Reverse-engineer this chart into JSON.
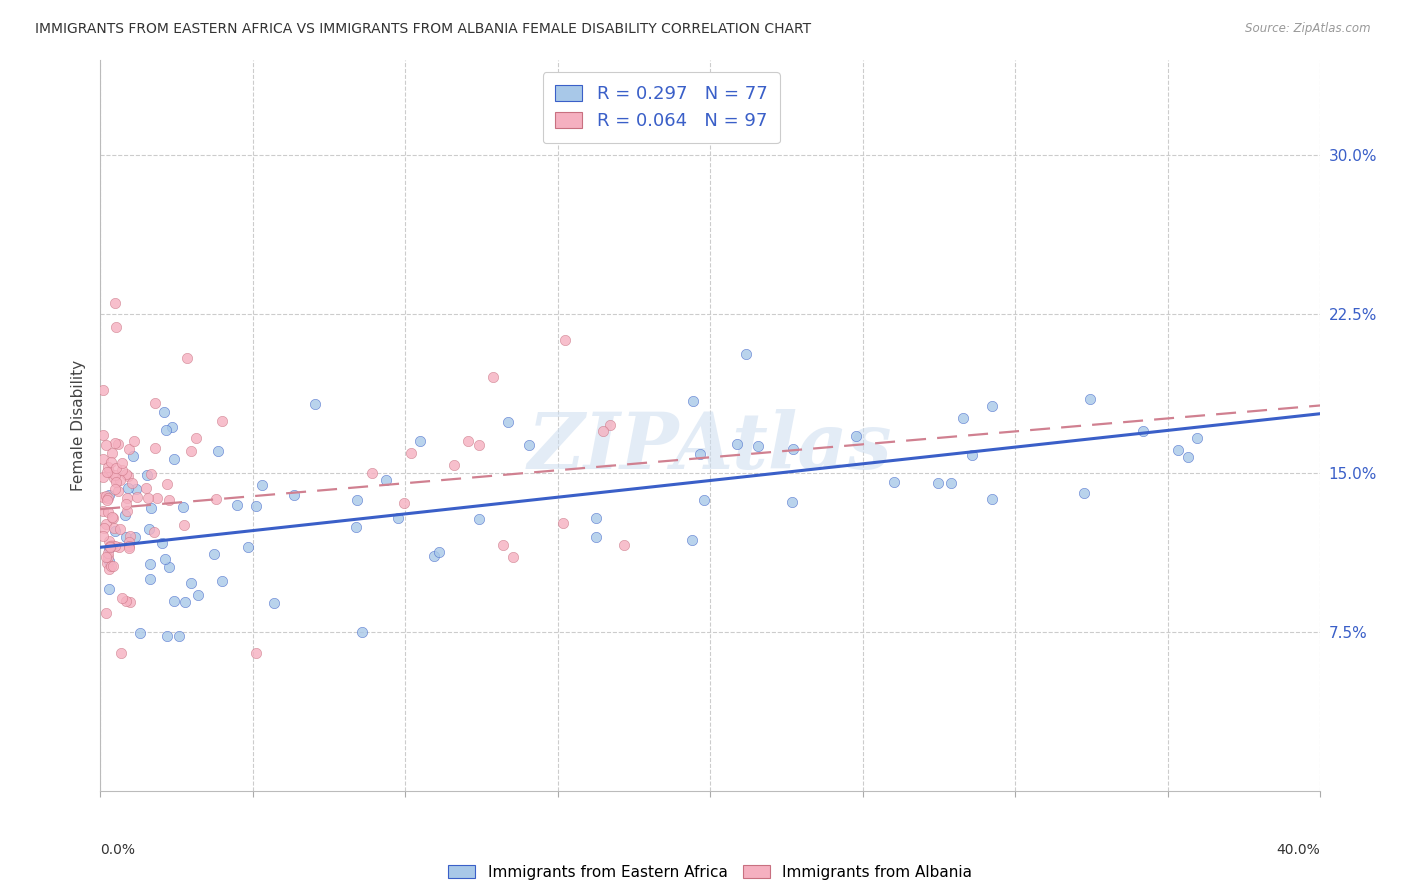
{
  "title": "IMMIGRANTS FROM EASTERN AFRICA VS IMMIGRANTS FROM ALBANIA FEMALE DISABILITY CORRELATION CHART",
  "source": "Source: ZipAtlas.com",
  "ylabel": "Female Disability",
  "ytick_values": [
    0.075,
    0.15,
    0.225,
    0.3
  ],
  "legend_label_blue": "R = 0.297   N = 77",
  "legend_label_pink": "R = 0.064   N = 97",
  "legend_bottom_blue": "Immigrants from Eastern Africa",
  "legend_bottom_pink": "Immigrants from Albania",
  "color_blue": "#a8c8e8",
  "color_pink": "#f5b0c0",
  "color_trendline_blue": "#3a5fc8",
  "color_trendline_pink": "#d08090",
  "watermark": "ZIPAtlas",
  "xlim": [
    0.0,
    0.4
  ],
  "ylim": [
    0.0,
    0.345
  ]
}
